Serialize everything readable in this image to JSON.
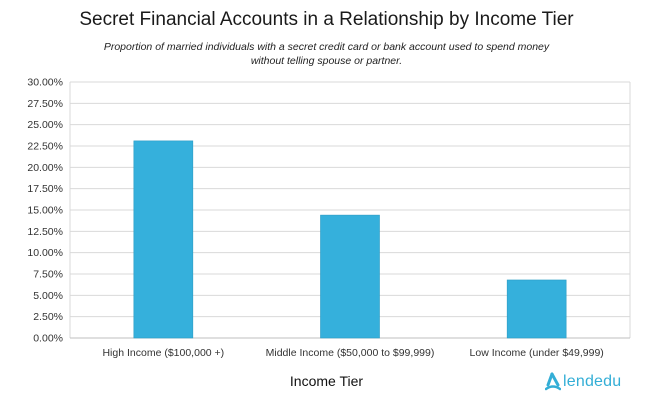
{
  "chart_data": {
    "type": "bar",
    "title": "Secret Financial Accounts in a Relationship by Income Tier",
    "subtitle": "Proportion of married individuals with a secret credit card or bank account used to spend money without telling spouse or partner.",
    "xlabel": "Income Tier",
    "ylabel": "",
    "categories": [
      "High Income ($100,000 +)",
      "Middle Income ($50,000 to $99,999)",
      "Low Income (under $49,999)"
    ],
    "values": [
      23.1,
      14.4,
      6.8
    ],
    "ylim": [
      0,
      30
    ],
    "yticks": [
      "0.00%",
      "2.50%",
      "5.00%",
      "7.50%",
      "10.00%",
      "12.50%",
      "15.00%",
      "17.50%",
      "20.00%",
      "22.50%",
      "25.00%",
      "27.50%",
      "30.00%"
    ],
    "bar_color": "#35b0dc",
    "grid": true
  },
  "brand": {
    "name": "lendedu",
    "color": "#33aed6"
  }
}
